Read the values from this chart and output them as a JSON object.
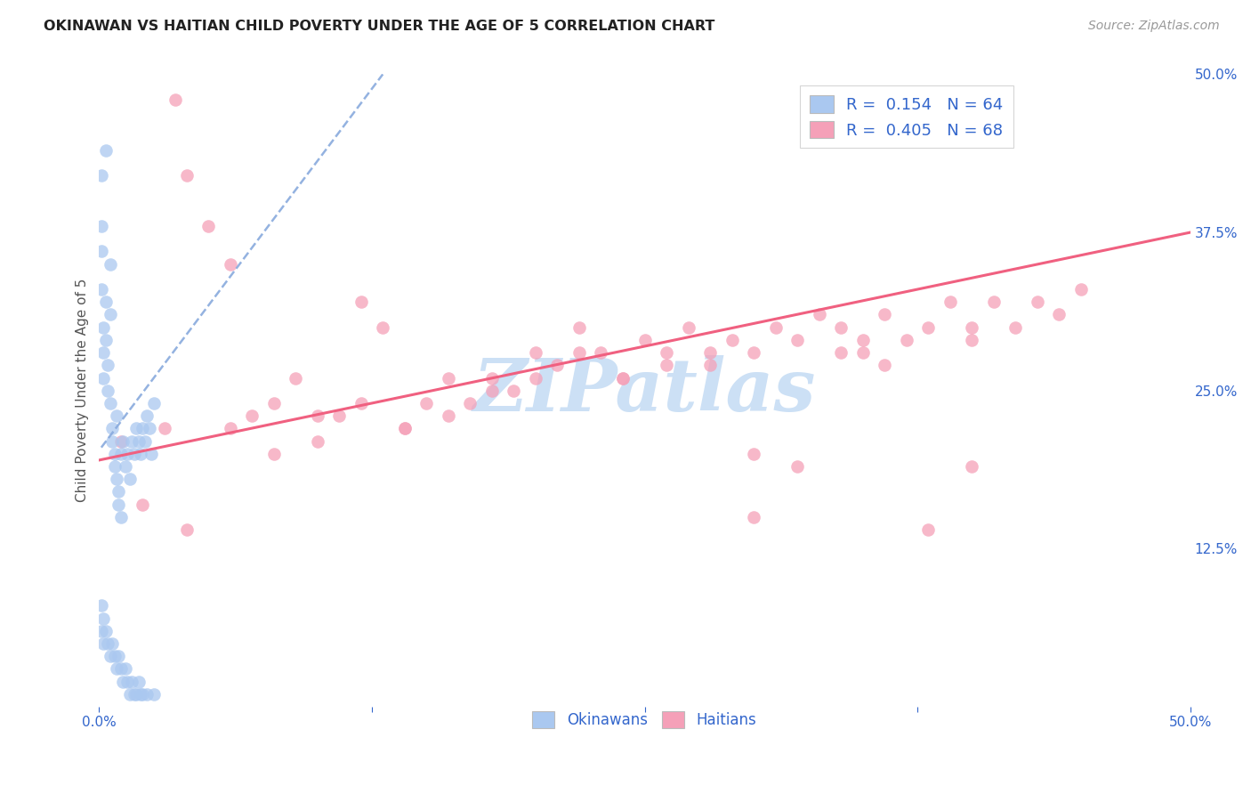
{
  "title": "OKINAWAN VS HAITIAN CHILD POVERTY UNDER THE AGE OF 5 CORRELATION CHART",
  "source": "Source: ZipAtlas.com",
  "ylabel": "Child Poverty Under the Age of 5",
  "xlim": [
    0.0,
    0.5
  ],
  "ylim": [
    0.0,
    0.5
  ],
  "xticks": [
    0.0,
    0.125,
    0.25,
    0.375,
    0.5
  ],
  "xticklabels": [
    "0.0%",
    "",
    "",
    "",
    "50.0%"
  ],
  "yticks_right": [
    0.0,
    0.125,
    0.25,
    0.375,
    0.5
  ],
  "yticklabels_right": [
    "",
    "12.5%",
    "25.0%",
    "37.5%",
    "50.0%"
  ],
  "okinawan_color": "#aac8f0",
  "okinawan_edge_color": "#88aadd",
  "haitian_color": "#f5a0b8",
  "haitian_edge_color": "#dd7799",
  "okinawan_line_color": "#88aadd",
  "haitian_line_color": "#f06080",
  "watermark_text": "ZIPatlas",
  "watermark_color": "#cce0f5",
  "background_color": "#ffffff",
  "grid_color": "#e0e0e0",
  "title_color": "#222222",
  "axis_label_color": "#555555",
  "tick_color": "#3366cc",
  "legend_label1": "R =  0.154   N = 64",
  "legend_label2": "R =  0.405   N = 68",
  "bottom_legend_label1": "Okinawans",
  "bottom_legend_label2": "Haitians",
  "okinawan_x": [
    0.001,
    0.001,
    0.001,
    0.001,
    0.002,
    0.002,
    0.002,
    0.003,
    0.003,
    0.003,
    0.004,
    0.004,
    0.005,
    0.005,
    0.005,
    0.006,
    0.006,
    0.007,
    0.007,
    0.008,
    0.008,
    0.009,
    0.009,
    0.01,
    0.01,
    0.011,
    0.012,
    0.013,
    0.014,
    0.015,
    0.016,
    0.017,
    0.018,
    0.019,
    0.02,
    0.021,
    0.022,
    0.023,
    0.024,
    0.025,
    0.001,
    0.001,
    0.002,
    0.002,
    0.003,
    0.004,
    0.005,
    0.006,
    0.007,
    0.008,
    0.009,
    0.01,
    0.011,
    0.012,
    0.013,
    0.014,
    0.015,
    0.016,
    0.017,
    0.018,
    0.019,
    0.02,
    0.022,
    0.025
  ],
  "okinawan_y": [
    0.42,
    0.38,
    0.36,
    0.33,
    0.3,
    0.28,
    0.26,
    0.44,
    0.32,
    0.29,
    0.27,
    0.25,
    0.35,
    0.31,
    0.24,
    0.22,
    0.21,
    0.2,
    0.19,
    0.23,
    0.18,
    0.17,
    0.16,
    0.2,
    0.15,
    0.21,
    0.19,
    0.2,
    0.18,
    0.21,
    0.2,
    0.22,
    0.21,
    0.2,
    0.22,
    0.21,
    0.23,
    0.22,
    0.2,
    0.24,
    0.08,
    0.06,
    0.07,
    0.05,
    0.06,
    0.05,
    0.04,
    0.05,
    0.04,
    0.03,
    0.04,
    0.03,
    0.02,
    0.03,
    0.02,
    0.01,
    0.02,
    0.01,
    0.01,
    0.02,
    0.01,
    0.01,
    0.01,
    0.01
  ],
  "haitian_x": [
    0.01,
    0.02,
    0.03,
    0.035,
    0.04,
    0.05,
    0.06,
    0.07,
    0.08,
    0.09,
    0.1,
    0.11,
    0.12,
    0.13,
    0.14,
    0.15,
    0.16,
    0.17,
    0.18,
    0.19,
    0.2,
    0.21,
    0.22,
    0.23,
    0.24,
    0.25,
    0.26,
    0.27,
    0.28,
    0.29,
    0.3,
    0.31,
    0.32,
    0.33,
    0.34,
    0.35,
    0.36,
    0.37,
    0.38,
    0.39,
    0.4,
    0.41,
    0.42,
    0.43,
    0.44,
    0.45,
    0.04,
    0.06,
    0.08,
    0.1,
    0.12,
    0.14,
    0.16,
    0.18,
    0.2,
    0.22,
    0.24,
    0.26,
    0.28,
    0.3,
    0.32,
    0.34,
    0.36,
    0.38,
    0.4,
    0.3,
    0.35,
    0.4
  ],
  "haitian_y": [
    0.21,
    0.16,
    0.22,
    0.48,
    0.42,
    0.38,
    0.35,
    0.23,
    0.24,
    0.26,
    0.21,
    0.23,
    0.32,
    0.3,
    0.22,
    0.24,
    0.26,
    0.24,
    0.26,
    0.25,
    0.28,
    0.27,
    0.3,
    0.28,
    0.26,
    0.29,
    0.28,
    0.3,
    0.27,
    0.29,
    0.28,
    0.3,
    0.29,
    0.31,
    0.3,
    0.29,
    0.31,
    0.29,
    0.3,
    0.32,
    0.3,
    0.32,
    0.3,
    0.32,
    0.31,
    0.33,
    0.14,
    0.22,
    0.2,
    0.23,
    0.24,
    0.22,
    0.23,
    0.25,
    0.26,
    0.28,
    0.26,
    0.27,
    0.28,
    0.2,
    0.19,
    0.28,
    0.27,
    0.14,
    0.29,
    0.15,
    0.28,
    0.19
  ],
  "ok_trend_x": [
    0.001,
    0.13
  ],
  "ok_trend_y": [
    0.205,
    0.5
  ],
  "ht_trend_x": [
    0.0,
    0.5
  ],
  "ht_trend_y": [
    0.195,
    0.375
  ]
}
